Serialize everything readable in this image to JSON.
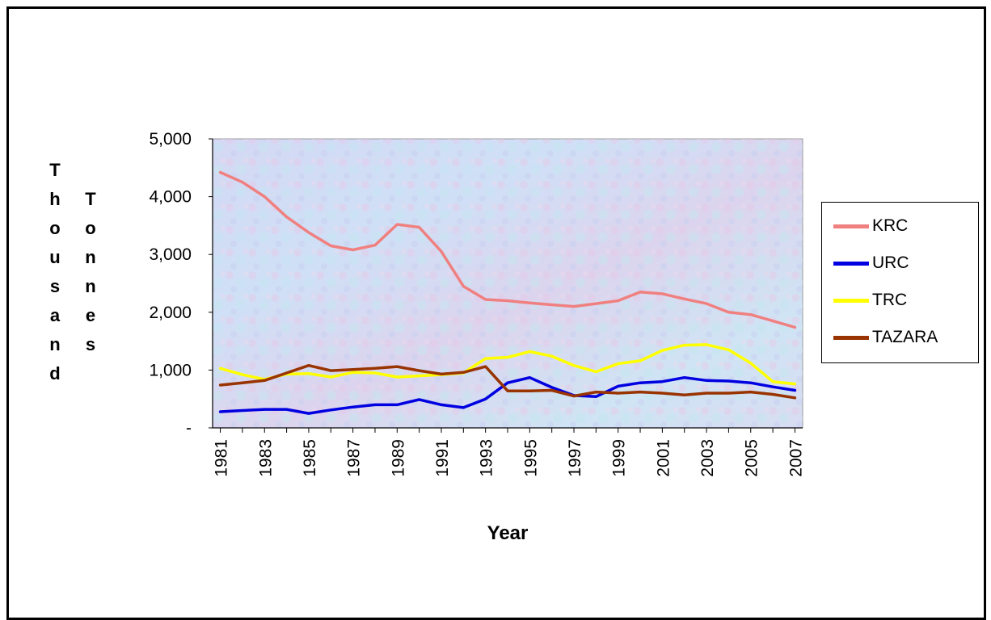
{
  "chart_data": {
    "type": "line",
    "title": "",
    "xlabel": "Year",
    "ylabel_col1": [
      "T",
      "h",
      "o",
      "u",
      "s",
      "a",
      "n",
      "d"
    ],
    "ylabel_col2": [
      "T",
      "o",
      "n",
      "n",
      "e",
      "s"
    ],
    "ylim": [
      0,
      5000
    ],
    "y_ticks": [
      {
        "value": 0,
        "label": "-"
      },
      {
        "value": 1000,
        "label": "1,000"
      },
      {
        "value": 2000,
        "label": "2,000"
      },
      {
        "value": 3000,
        "label": "3,000"
      },
      {
        "value": 4000,
        "label": "4,000"
      },
      {
        "value": 5000,
        "label": "5,000"
      }
    ],
    "x": [
      1981,
      1982,
      1983,
      1984,
      1985,
      1986,
      1987,
      1988,
      1989,
      1990,
      1991,
      1992,
      1993,
      1994,
      1995,
      1996,
      1997,
      1998,
      1999,
      2000,
      2001,
      2002,
      2003,
      2004,
      2005,
      2006,
      2007
    ],
    "x_tick_labels": [
      "1981",
      "1983",
      "1985",
      "1987",
      "1989",
      "1991",
      "1993",
      "1995",
      "1997",
      "1999",
      "2001",
      "2003",
      "2005",
      "2007"
    ],
    "legend_position": "right",
    "series": [
      {
        "name": "KRC",
        "color": "#f08080",
        "values": [
          4420,
          4250,
          4000,
          3650,
          3380,
          3150,
          3080,
          3160,
          3520,
          3470,
          3050,
          2450,
          2220,
          2200,
          2160,
          2130,
          2100,
          2150,
          2200,
          2350,
          2320,
          2230,
          2150,
          2000,
          1960,
          1850,
          1740
        ]
      },
      {
        "name": "URC",
        "color": "#0000e0",
        "values": [
          280,
          300,
          320,
          320,
          250,
          310,
          360,
          400,
          400,
          490,
          400,
          350,
          500,
          780,
          870,
          700,
          560,
          540,
          720,
          780,
          800,
          870,
          820,
          810,
          780,
          710,
          650
        ]
      },
      {
        "name": "TRC",
        "color": "#ffff00",
        "values": [
          1030,
          920,
          840,
          930,
          940,
          880,
          960,
          950,
          880,
          900,
          920,
          950,
          1200,
          1220,
          1320,
          1240,
          1080,
          970,
          1110,
          1160,
          1340,
          1430,
          1440,
          1350,
          1120,
          800,
          760
        ]
      },
      {
        "name": "TAZARA",
        "color": "#993300",
        "values": [
          740,
          780,
          820,
          950,
          1080,
          990,
          1010,
          1030,
          1060,
          990,
          930,
          960,
          1060,
          640,
          640,
          650,
          550,
          620,
          600,
          620,
          600,
          570,
          600,
          600,
          620,
          580,
          520
        ]
      }
    ]
  }
}
